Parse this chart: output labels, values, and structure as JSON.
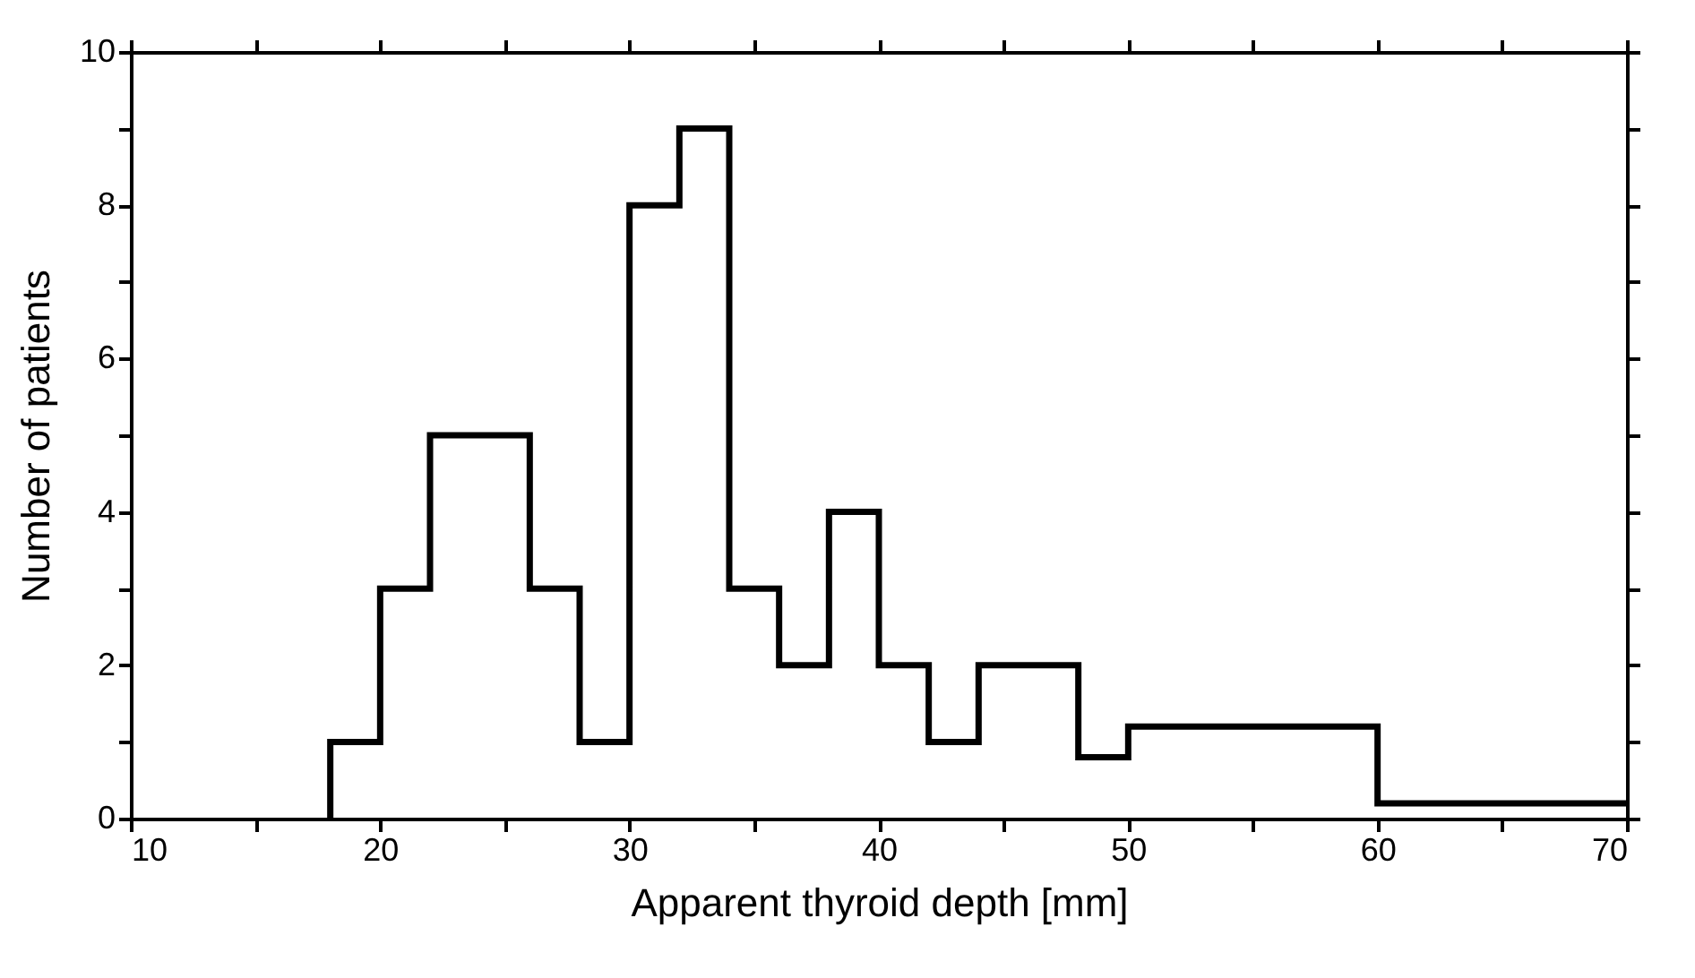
{
  "chart_data": {
    "type": "histogram",
    "xlabel": "Apparent thyroid depth [mm]",
    "ylabel": "Number of patients",
    "bins": [
      18,
      20,
      22,
      24,
      26,
      28,
      30,
      32,
      34,
      36,
      38,
      40,
      42,
      44,
      46,
      48,
      50,
      60,
      70
    ],
    "values": [
      1,
      3,
      5,
      5,
      3,
      1,
      8,
      9,
      3,
      2,
      4,
      2,
      1,
      2,
      2,
      0.8,
      1.2,
      0.2
    ],
    "color": "#000000",
    "xlim": [
      10,
      70
    ],
    "ylim": [
      0,
      10
    ],
    "xticks": [
      10,
      {
        "value": 15,
        "label": null
      },
      20,
      {
        "value": 25,
        "label": null
      },
      30,
      {
        "value": 35,
        "label": null
      },
      40,
      {
        "value": 45,
        "label": null
      },
      50,
      {
        "value": 55,
        "label": null
      },
      60,
      {
        "value": 65,
        "label": null
      },
      70
    ],
    "yticks": [
      0,
      {
        "value": 1,
        "label": null
      },
      2,
      {
        "value": 3,
        "label": null
      },
      4,
      {
        "value": 5,
        "label": null
      },
      6,
      {
        "value": 7,
        "label": null
      },
      8,
      {
        "value": 9,
        "label": null
      },
      10
    ]
  }
}
